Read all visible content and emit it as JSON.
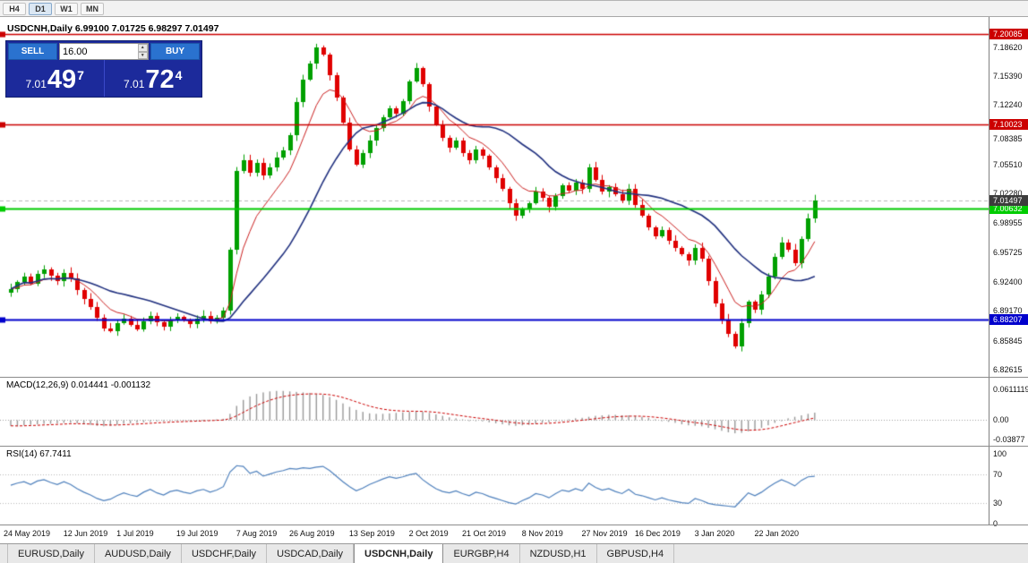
{
  "window": {
    "toolbar": {
      "timeframes": [
        "H4",
        "D1",
        "W1",
        "MN"
      ],
      "active": "D1"
    }
  },
  "chart": {
    "title": "USDCNH,Daily 6.99100 7.01725 6.98297 7.01497",
    "trade_panel": {
      "sell_label": "SELL",
      "buy_label": "BUY",
      "volume": "16.00",
      "sell_price": {
        "prefix": "7.01",
        "big": "49",
        "sup": "7"
      },
      "buy_price": {
        "prefix": "7.01",
        "big": "72",
        "sup": "4"
      }
    }
  },
  "chart_data": {
    "type": "candlestick",
    "symbol": "USDCNH",
    "timeframe": "Daily",
    "ohlc_header": {
      "open": "6.99100",
      "high": "7.01725",
      "low": "6.98297",
      "close": "7.01497"
    },
    "ylim": [
      6.818,
      7.22
    ],
    "y_ticks": [
      "7.18620",
      "7.15390",
      "7.12240",
      "7.08385",
      "7.05510",
      "7.02280",
      "6.98955",
      "6.95725",
      "6.92400",
      "6.89170",
      "6.85845",
      "6.82615"
    ],
    "levels": [
      {
        "price": 7.20085,
        "label": "7.20085",
        "color": "#cc0000",
        "width": 1.4
      },
      {
        "price": 7.10023,
        "label": "7.10023",
        "color": "#cc0000",
        "width": 1.4
      },
      {
        "price": 7.00632,
        "label": "7.00632",
        "color": "#00cc00",
        "width": 2
      },
      {
        "price": 6.88207,
        "label": "6.88207",
        "color": "#0000cc",
        "width": 2
      }
    ],
    "current_price": {
      "price": 7.01497,
      "label": "7.01497",
      "color": "#3c3c3c"
    },
    "up_color": "#00a000",
    "down_color": "#e00000",
    "ma_fast_color": "#cc2222",
    "ma_slow_color": "#20307f",
    "x_labels": [
      {
        "text": "24 May 2019",
        "bar": 0
      },
      {
        "text": "12 Jun 2019",
        "bar": 9
      },
      {
        "text": "1 Jul 2019",
        "bar": 17
      },
      {
        "text": "19 Jul 2019",
        "bar": 26
      },
      {
        "text": "7 Aug 2019",
        "bar": 35
      },
      {
        "text": "26 Aug 2019",
        "bar": 43
      },
      {
        "text": "13 Sep 2019",
        "bar": 52
      },
      {
        "text": "2 Oct 2019",
        "bar": 61
      },
      {
        "text": "21 Oct 2019",
        "bar": 69
      },
      {
        "text": "8 Nov 2019",
        "bar": 78
      },
      {
        "text": "27 Nov 2019",
        "bar": 87
      },
      {
        "text": "16 Dec 2019",
        "bar": 95
      },
      {
        "text": "3 Jan 2020",
        "bar": 104
      },
      {
        "text": "22 Jan 2020",
        "bar": 113
      }
    ],
    "closes": [
      6.916,
      6.924,
      6.93,
      6.922,
      6.933,
      6.938,
      6.931,
      6.925,
      6.934,
      6.928,
      6.915,
      6.905,
      6.896,
      6.884,
      6.872,
      6.869,
      6.878,
      6.883,
      6.876,
      6.871,
      6.88,
      6.886,
      6.879,
      6.874,
      6.882,
      6.885,
      6.881,
      6.877,
      6.883,
      6.886,
      6.88,
      6.884,
      6.892,
      6.96,
      7.048,
      7.06,
      7.046,
      7.057,
      7.043,
      7.052,
      7.063,
      7.071,
      7.088,
      7.125,
      7.15,
      7.168,
      7.186,
      7.178,
      7.155,
      7.13,
      7.102,
      7.072,
      7.055,
      7.068,
      7.082,
      7.096,
      7.108,
      7.118,
      7.112,
      7.126,
      7.148,
      7.163,
      7.145,
      7.12,
      7.1,
      7.085,
      7.074,
      7.082,
      7.068,
      7.06,
      7.072,
      7.065,
      7.052,
      7.04,
      7.028,
      7.012,
      6.998,
      7.005,
      7.012,
      7.025,
      7.018,
      7.008,
      7.02,
      7.032,
      7.026,
      7.035,
      7.028,
      7.052,
      7.038,
      7.025,
      7.03,
      7.022,
      7.015,
      7.028,
      7.01,
      6.998,
      6.985,
      6.975,
      6.982,
      6.97,
      6.962,
      6.955,
      6.948,
      6.962,
      6.95,
      6.925,
      6.9,
      6.882,
      6.866,
      6.852,
      6.878,
      6.902,
      6.893,
      6.91,
      6.93,
      6.952,
      6.968,
      6.96,
      6.945,
      6.972,
      6.995,
      7.015
    ],
    "macd": {
      "label": "MACD(12,26,9) 0.014441 -0.001132",
      "values_text": {
        "macd": "0.014441",
        "signal": "-0.001132"
      },
      "y_ticks": [
        {
          "v": 0.0611119,
          "text": "0.0611119"
        },
        {
          "v": 0,
          "text": "0.00"
        },
        {
          "v": -0.03877,
          "text": "-0.03877"
        }
      ],
      "range": [
        -0.052,
        0.0845
      ],
      "hist_color": "#999999",
      "signal_color": "#cc0000",
      "histogram": [
        -0.012,
        -0.013,
        -0.011,
        -0.01,
        -0.009,
        -0.008,
        -0.008,
        -0.007,
        -0.006,
        -0.006,
        -0.007,
        -0.009,
        -0.01,
        -0.012,
        -0.013,
        -0.012,
        -0.01,
        -0.008,
        -0.007,
        -0.006,
        -0.005,
        -0.004,
        -0.003,
        -0.003,
        -0.002,
        -0.002,
        -0.002,
        -0.001,
        -0.001,
        0.0,
        0.0,
        0.001,
        0.002,
        0.012,
        0.028,
        0.04,
        0.047,
        0.052,
        0.055,
        0.057,
        0.058,
        0.058,
        0.057,
        0.056,
        0.055,
        0.054,
        0.052,
        0.05,
        0.046,
        0.04,
        0.033,
        0.026,
        0.02,
        0.016,
        0.013,
        0.012,
        0.012,
        0.013,
        0.014,
        0.015,
        0.016,
        0.017,
        0.016,
        0.014,
        0.011,
        0.008,
        0.005,
        0.003,
        0.001,
        -0.001,
        -0.002,
        -0.003,
        -0.005,
        -0.007,
        -0.009,
        -0.011,
        -0.012,
        -0.011,
        -0.01,
        -0.008,
        -0.006,
        -0.005,
        -0.003,
        -0.001,
        0.001,
        0.003,
        0.004,
        0.006,
        0.008,
        0.009,
        0.01,
        0.01,
        0.009,
        0.009,
        0.008,
        0.006,
        0.004,
        0.001,
        -0.001,
        -0.004,
        -0.006,
        -0.009,
        -0.011,
        -0.012,
        -0.013,
        -0.016,
        -0.019,
        -0.022,
        -0.025,
        -0.027,
        -0.026,
        -0.023,
        -0.02,
        -0.016,
        -0.011,
        -0.006,
        -0.001,
        0.003,
        0.006,
        0.009,
        0.012,
        0.0144
      ]
    },
    "rsi": {
      "label": "RSI(14) 67.7411",
      "current": "67.7411",
      "levels": [
        {
          "v": 100,
          "text": "100"
        },
        {
          "v": 70,
          "text": "70"
        },
        {
          "v": 30,
          "text": "30"
        },
        {
          "v": 0,
          "text": "0"
        }
      ],
      "line_color": "#4f81bd",
      "values": [
        55,
        58,
        60,
        56,
        61,
        63,
        59,
        56,
        60,
        56,
        50,
        45,
        41,
        36,
        33,
        35,
        40,
        44,
        41,
        39,
        45,
        49,
        44,
        41,
        46,
        48,
        45,
        43,
        47,
        49,
        45,
        48,
        53,
        74,
        83,
        82,
        72,
        75,
        68,
        71,
        74,
        76,
        79,
        78,
        80,
        79,
        81,
        82,
        76,
        68,
        60,
        53,
        47,
        51,
        56,
        60,
        64,
        67,
        65,
        67,
        70,
        72,
        63,
        56,
        50,
        46,
        44,
        47,
        43,
        40,
        45,
        43,
        39,
        36,
        33,
        30,
        28,
        33,
        37,
        43,
        41,
        37,
        43,
        48,
        46,
        50,
        47,
        58,
        52,
        48,
        50,
        46,
        43,
        49,
        42,
        40,
        37,
        34,
        37,
        34,
        32,
        30,
        29,
        36,
        33,
        29,
        27,
        26,
        25,
        24,
        34,
        44,
        40,
        45,
        52,
        58,
        63,
        59,
        54,
        62,
        67,
        67.7
      ]
    }
  },
  "tabs": {
    "items": [
      "EURUSD,Daily",
      "AUDUSD,Daily",
      "USDCHF,Daily",
      "USDCAD,Daily",
      "USDCNH,Daily",
      "EURGBP,H4",
      "NZDUSD,H1",
      "GBPUSD,H4"
    ],
    "active_index": 4
  }
}
